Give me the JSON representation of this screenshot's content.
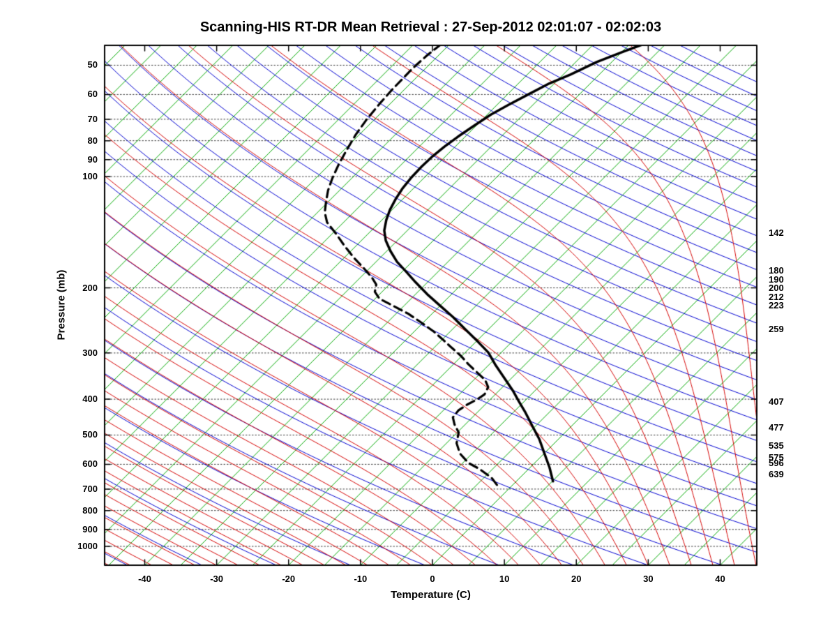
{
  "title": "Scanning-HIS RT-DR Mean Retrieval : 27-Sep-2012 02:01:07 - 02:02:03",
  "axes": {
    "x_label": "Temperature (C)",
    "y_label": "Pressure (mb)",
    "x_ticks": [
      -40,
      -30,
      -20,
      -10,
      0,
      10,
      20,
      30,
      40
    ],
    "y_ticks": [
      50,
      60,
      70,
      80,
      90,
      100,
      200,
      300,
      400,
      500,
      600,
      700,
      800,
      900,
      1000
    ],
    "right_pressure_labels": [
      142,
      180,
      190,
      200,
      212,
      223,
      259,
      407,
      477,
      535,
      575,
      596,
      639
    ]
  },
  "colors": {
    "background": "#ffffff",
    "axis_box": "#000000",
    "isobar_grid": "#303030",
    "isotherm_green": "#00A800",
    "dry_adiabat_blue": "#0000D0",
    "moist_adiabat_red": "#D40000",
    "profile_black": "#000000"
  },
  "chart_data": {
    "type": "line",
    "subtype": "skew-t-log-p",
    "title": "Scanning-HIS RT-DR Mean Retrieval : 27-Sep-2012 02:01:07 - 02:02:03",
    "xlabel": "Temperature (C)",
    "ylabel": "Pressure (mb)",
    "x_range_at_surface_C": [
      -45.6,
      45.1
    ],
    "pressure_range_mb": [
      44,
      1125
    ],
    "skew_deg": 45,
    "grid": "dotted-isobars",
    "legend": "none",
    "isobar_levels": [
      50,
      60,
      70,
      80,
      90,
      100,
      200,
      300,
      400,
      500,
      600,
      700,
      800,
      900,
      1000
    ],
    "isotherms": {
      "color": "#00A800",
      "min_C": -120,
      "max_C": 45,
      "step_C": 5
    },
    "dry_adiabats": {
      "color": "#0000D0",
      "theta_min_C": -60,
      "theta_max_C": 300,
      "step_C": 10
    },
    "moist_adiabats": {
      "color": "#D40000",
      "surface_t_min_C": -63,
      "surface_t_max_C": 48,
      "step_C": 3
    },
    "series": [
      {
        "name": "temperature",
        "line": "solid",
        "color": "#000000",
        "points_p_T": [
          [
            667,
            5.1
          ],
          [
            612,
            2.7
          ],
          [
            560,
            0
          ],
          [
            514,
            -2.6
          ],
          [
            472,
            -5.5
          ],
          [
            432,
            -8.5
          ],
          [
            405,
            -10.8
          ],
          [
            379,
            -13.1
          ],
          [
            348,
            -16.3
          ],
          [
            322,
            -19.2
          ],
          [
            299,
            -21.8
          ],
          [
            278,
            -25
          ],
          [
            259,
            -28.2
          ],
          [
            240,
            -31.6
          ],
          [
            223,
            -35.1
          ],
          [
            208,
            -38.4
          ],
          [
            193,
            -41.7
          ],
          [
            181,
            -44.4
          ],
          [
            170,
            -47.1
          ],
          [
            159,
            -49.5
          ],
          [
            149,
            -51.6
          ],
          [
            140,
            -53.2
          ],
          [
            131,
            -54.4
          ],
          [
            123,
            -55.3
          ],
          [
            115,
            -56
          ],
          [
            108,
            -56.5
          ],
          [
            101,
            -56.8
          ],
          [
            94,
            -56.9
          ],
          [
            88,
            -56.8
          ],
          [
            83,
            -56.5
          ],
          [
            78,
            -56
          ],
          [
            73,
            -55.3
          ],
          [
            68,
            -54.5
          ],
          [
            64,
            -53.4
          ],
          [
            60,
            -52.1
          ],
          [
            56,
            -50.7
          ],
          [
            53,
            -49
          ],
          [
            49,
            -47.1
          ],
          [
            46,
            -44.9
          ],
          [
            44,
            -43.2
          ]
        ]
      },
      {
        "name": "dew_point",
        "line": "dashed",
        "color": "#000000",
        "points_p_T": [
          [
            682,
            -2.2
          ],
          [
            653,
            -3.9
          ],
          [
            618,
            -6.8
          ],
          [
            595,
            -9.2
          ],
          [
            561,
            -11.7
          ],
          [
            526,
            -13.6
          ],
          [
            492,
            -14.8
          ],
          [
            468,
            -16.5
          ],
          [
            448,
            -17.7
          ],
          [
            429,
            -17.9
          ],
          [
            414,
            -17.5
          ],
          [
            400,
            -16.8
          ],
          [
            388,
            -16.5
          ],
          [
            371,
            -17
          ],
          [
            355,
            -18.4
          ],
          [
            340,
            -20.4
          ],
          [
            322,
            -22.9
          ],
          [
            305,
            -25.2
          ],
          [
            290,
            -27.6
          ],
          [
            276,
            -29.9
          ],
          [
            263,
            -32.2
          ],
          [
            249,
            -35.1
          ],
          [
            235,
            -38.3
          ],
          [
            223,
            -41.7
          ],
          [
            214,
            -44.4
          ],
          [
            205,
            -46
          ],
          [
            196,
            -46.8
          ],
          [
            188,
            -48.3
          ],
          [
            177,
            -50.8
          ],
          [
            166,
            -53.6
          ],
          [
            154,
            -56.6
          ],
          [
            143,
            -59.4
          ],
          [
            133,
            -62.3
          ],
          [
            125,
            -64
          ],
          [
            117,
            -65.3
          ],
          [
            109,
            -66.6
          ],
          [
            101,
            -67.7
          ],
          [
            93,
            -68.7
          ],
          [
            85,
            -69.6
          ],
          [
            77,
            -70.5
          ],
          [
            70,
            -71.1
          ],
          [
            63,
            -71.5
          ],
          [
            58,
            -71.7
          ],
          [
            51,
            -71.8
          ],
          [
            47,
            -71.6
          ],
          [
            44,
            -71.2
          ]
        ]
      }
    ]
  }
}
